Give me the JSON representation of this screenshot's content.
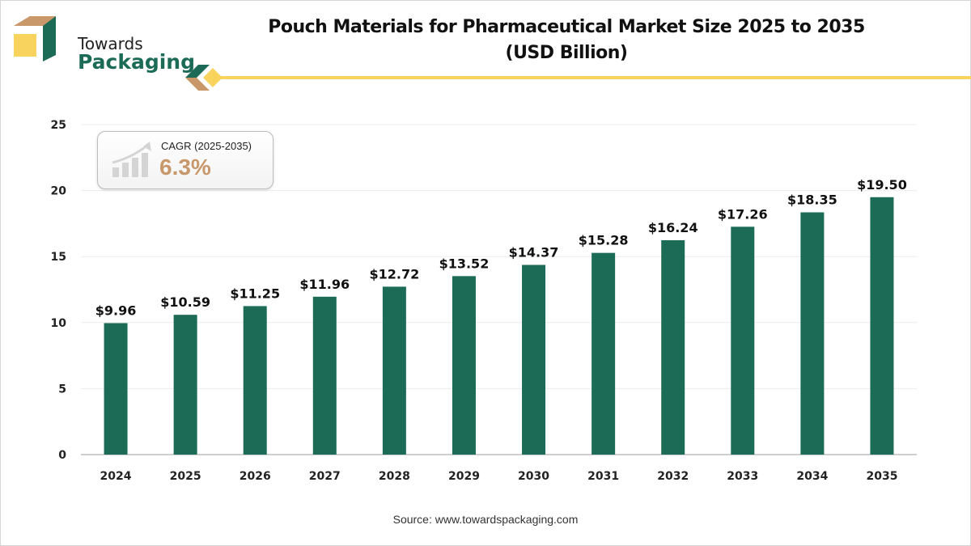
{
  "brand": {
    "line1": "Towards",
    "line2": "Packaging",
    "colors": {
      "green": "#1b6b57",
      "gold": "#f8d35e",
      "tan": "#c8976a"
    }
  },
  "header": {
    "title_line1": "Pouch Materials for Pharmaceutical Market Size 2025 to 2035",
    "title_line2": "(USD Billion)"
  },
  "cagr": {
    "label": "CAGR (2025-2035)",
    "value": "6.3%",
    "icon": "growth-chart-icon"
  },
  "source": "Source: www.towardspackaging.com",
  "chart_data": {
    "type": "bar",
    "title": "Pouch Materials for Pharmaceutical Market Size 2025 to 2035 (USD Billion)",
    "xlabel": "",
    "ylabel": "",
    "categories": [
      "2024",
      "2025",
      "2026",
      "2027",
      "2028",
      "2029",
      "2030",
      "2031",
      "2032",
      "2033",
      "2034",
      "2035"
    ],
    "values": [
      9.96,
      10.59,
      11.25,
      11.96,
      12.72,
      13.52,
      14.37,
      15.28,
      16.24,
      17.26,
      18.35,
      19.5
    ],
    "data_labels": [
      "$9.96",
      "$10.59",
      "$11.25",
      "$11.96",
      "$12.72",
      "$13.52",
      "$14.37",
      "$15.28",
      "$16.24",
      "$17.26",
      "$18.35",
      "$19.50"
    ],
    "ylim": [
      0,
      25
    ],
    "yticks": [
      0,
      5,
      10,
      15,
      20,
      25
    ],
    "ytick_labels": [
      "0",
      "5",
      "10",
      "15",
      "20",
      "25"
    ],
    "grid": true,
    "bar_color": "#1b6b57"
  }
}
